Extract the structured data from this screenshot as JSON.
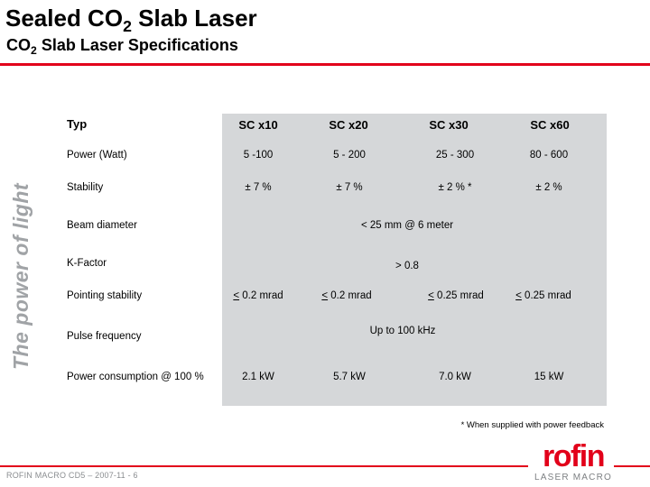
{
  "slide": {
    "title_pre": "Sealed CO",
    "title_sub": "2",
    "title_post": " Slab Laser",
    "subtitle_pre": "CO",
    "subtitle_sub": "2",
    "subtitle_post": " Slab Laser Specifications",
    "vertical_slogan": "The power of light"
  },
  "table": {
    "header_first": "Typ",
    "columns": [
      "SC x10",
      "SC x20",
      "SC x30",
      "SC x60"
    ],
    "rows": [
      {
        "label": "Power (Watt)",
        "cells": [
          "5 -100",
          "5 - 200",
          "25 - 300",
          "80 - 600"
        ]
      },
      {
        "label": "Stability",
        "cells": [
          "± 7 %",
          "± 7 %",
          "± 2 % *",
          "± 2 %"
        ]
      },
      {
        "label": "Beam diameter",
        "span": "< 25 mm @ 6 meter"
      },
      {
        "label": "K-Factor",
        "span": "> 0.8"
      },
      {
        "label": "Pointing stability",
        "cells_prefix": "<",
        "cells": [
          " 0.2 mrad",
          " 0.2 mrad",
          " 0.25 mrad",
          " 0.25 mrad"
        ]
      },
      {
        "label": "Pulse frequency",
        "span": "Up to  100 kHz"
      },
      {
        "label": "Power consumption @ 100 %",
        "cells": [
          "2.1 kW",
          "5.7 kW",
          "7.0 kW",
          "15 kW"
        ]
      }
    ]
  },
  "footnote": "* When supplied with power feedback",
  "footer": {
    "text": "ROFIN MACRO CD5 – 2007-11 - 6",
    "logo_word": "rofin",
    "logo_sub": "LASER MACRO"
  },
  "colors": {
    "brand_red": "#e2001a",
    "table_gray": "#d5d7d9",
    "slogan_gray": "#a0a3a6"
  }
}
